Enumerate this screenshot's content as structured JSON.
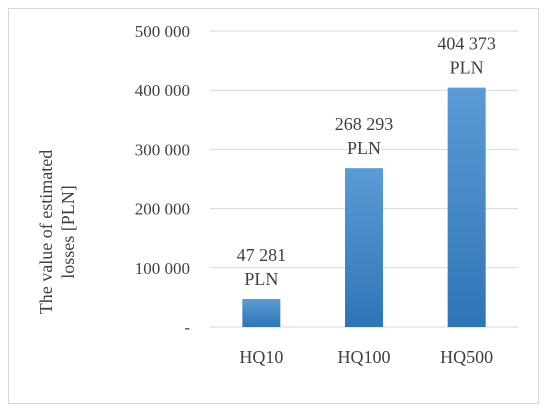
{
  "chart_data": {
    "type": "bar",
    "categories": [
      "HQ10",
      "HQ100",
      "HQ500"
    ],
    "values": [
      47281,
      268293,
      404373
    ],
    "data_labels": [
      [
        "47 281",
        "PLN"
      ],
      [
        "268 293",
        "PLN"
      ],
      [
        "404 373",
        "PLN"
      ]
    ],
    "ylabel_lines": [
      "The value of estimated",
      "losses [PLN]"
    ],
    "ylim": [
      0,
      500000
    ],
    "yticks": [
      0,
      100000,
      200000,
      300000,
      400000,
      500000
    ],
    "ytick_labels": [
      "-",
      "100 000",
      "200 000",
      "300 000",
      "400 000",
      "500 000"
    ],
    "grid": true,
    "bar_color_top": "#5b9bd5",
    "bar_color_bottom": "#2e75b6"
  }
}
